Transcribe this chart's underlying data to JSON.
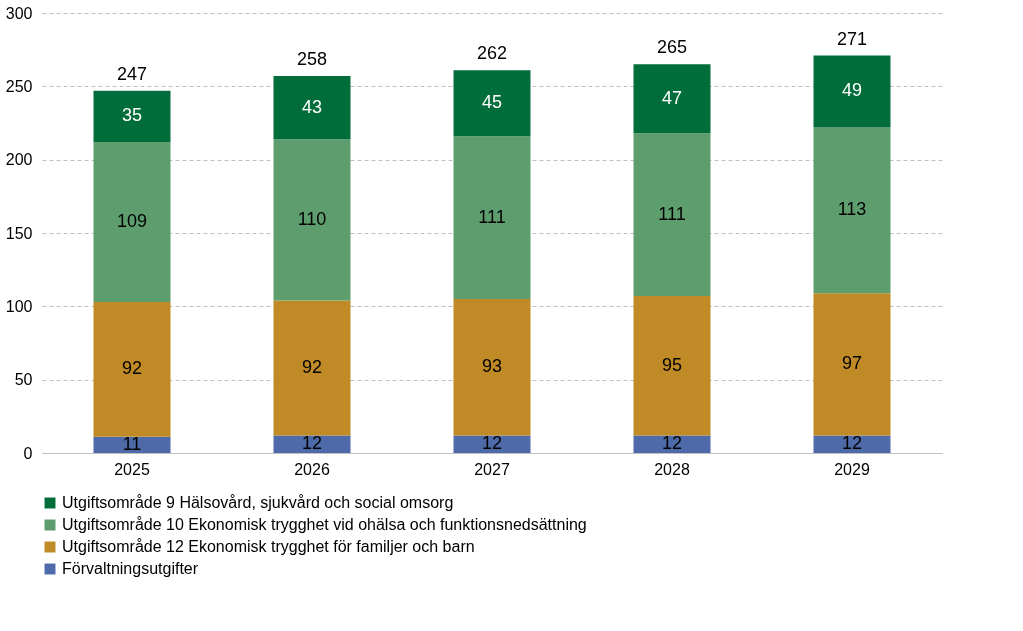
{
  "chart_data": {
    "type": "bar",
    "stacked": true,
    "categories": [
      "2025",
      "2026",
      "2027",
      "2028",
      "2029"
    ],
    "series": [
      {
        "name": "Förvaltningsutgifter",
        "color": "#4f6aa8",
        "values": [
          11,
          12,
          12,
          12,
          12
        ]
      },
      {
        "name": "Utgiftsområde 12 Ekonomisk trygghet för familjer och barn",
        "color": "#c08a26",
        "values": [
          92,
          92,
          93,
          95,
          97
        ]
      },
      {
        "name": "Utgiftsområde 10 Ekonomisk trygghet vid ohälsa och funktionsnedsättning",
        "color": "#5e9e6e",
        "values": [
          109,
          110,
          111,
          111,
          113
        ]
      },
      {
        "name": "Utgiftsområde 9 Hälsovård, sjukvård och social omsorg",
        "color": "#006d3a",
        "values": [
          35,
          43,
          45,
          47,
          49
        ]
      }
    ],
    "totals": [
      "247",
      "258",
      "262",
      "265",
      "271"
    ],
    "data_labels": true,
    "ylim": [
      0,
      300
    ],
    "yticks": [
      0,
      50,
      100,
      150,
      200,
      250,
      300
    ],
    "grid": "y",
    "legend": "bottom"
  }
}
